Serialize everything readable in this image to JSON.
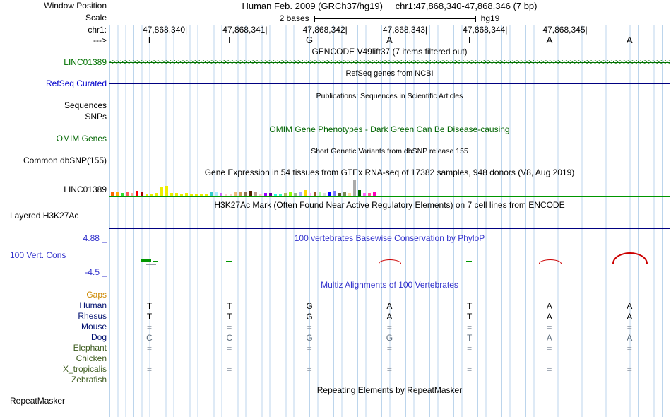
{
  "colors": {
    "guide_line": "#bcd5ec",
    "gencode_green": "#007200",
    "refseq_blue": "#0000CC",
    "navy_line": "#000080",
    "omim_green": "#006400",
    "gtex_baseline_green": "#009600",
    "conservation_blue": "#3333CC",
    "gaps_orange": "#CC8800",
    "phylop_positive_red": "#CC0000",
    "phylop_negative_green": "#009600"
  },
  "window": {
    "label": "Window Position",
    "assembly": "Human Feb. 2009 (GRCh37/hg19)",
    "position": "chr1:47,868,340-47,868,346 (7 bp)"
  },
  "scale": {
    "label": "Scale",
    "value": "2 bases",
    "assembly": "hg19"
  },
  "ruler": {
    "chrom_label": "chr1:",
    "strand_label": "--->",
    "coordinates": [
      "47,868,340|",
      "47,868,341|",
      "47,868,342|",
      "47,868,343|",
      "47,868,344|",
      "47,868,345|"
    ],
    "bases": [
      "T",
      "T",
      "G",
      "A",
      "T",
      "A",
      "A"
    ]
  },
  "tracks": {
    "gencode": {
      "title": "GENCODE V49lift37 (7 items filtered out)",
      "gene": "LINC01389",
      "strand_char": "<"
    },
    "refseq": {
      "title": "RefSeq genes from NCBI",
      "label": "RefSeq Curated"
    },
    "publications": {
      "title": "Publications: Sequences in Scientific Articles",
      "label_sequences": "Sequences",
      "label_snps": "SNPs"
    },
    "omim": {
      "title": "OMIM Gene Phenotypes - Dark Green Can Be Disease-causing",
      "label": "OMIM Genes"
    },
    "dbsnp": {
      "title": "Short Genetic Variants from dbSNP release 155",
      "label": "Common dbSNP(155)"
    },
    "gtex": {
      "title": "Gene Expression in 54 tissues from GTEx RNA-seq of 17382 samples, 948 donors (V8, Aug 2019)",
      "label": "LINC01389",
      "bars": [
        {
          "h": 6,
          "c": "#FF6600"
        },
        {
          "h": 5,
          "c": "#FFAA00"
        },
        {
          "h": 4,
          "c": "#33DD33"
        },
        {
          "h": 6,
          "c": "#FF5555"
        },
        {
          "h": 4,
          "c": "#FFAA99"
        },
        {
          "h": 7,
          "c": "#FF0000"
        },
        {
          "h": 5,
          "c": "#AA0000"
        },
        {
          "h": 3,
          "c": "#EEEE00"
        },
        {
          "h": 3,
          "c": "#EEEE00"
        },
        {
          "h": 4,
          "c": "#EEEE00"
        },
        {
          "h": 12,
          "c": "#EEEE00"
        },
        {
          "h": 14,
          "c": "#EEEE00"
        },
        {
          "h": 4,
          "c": "#EEEE00"
        },
        {
          "h": 4,
          "c": "#EEEE00"
        },
        {
          "h": 3,
          "c": "#EEEE00"
        },
        {
          "h": 4,
          "c": "#EEEE00"
        },
        {
          "h": 3,
          "c": "#EEEE00"
        },
        {
          "h": 3,
          "c": "#EEEE00"
        },
        {
          "h": 3,
          "c": "#EEEE00"
        },
        {
          "h": 3,
          "c": "#EEEE00"
        },
        {
          "h": 5,
          "c": "#33CCCC"
        },
        {
          "h": 5,
          "c": "#AAEEFF"
        },
        {
          "h": 4,
          "c": "#CC66FF"
        },
        {
          "h": 3,
          "c": "#FFCCCC"
        },
        {
          "h": 3,
          "c": "#FFCCCC"
        },
        {
          "h": 5,
          "c": "#EEBB77"
        },
        {
          "h": 5,
          "c": "#CC9955"
        },
        {
          "h": 5,
          "c": "#8B7355"
        },
        {
          "h": 7,
          "c": "#552200"
        },
        {
          "h": 5,
          "c": "#BB9988"
        },
        {
          "h": 3,
          "c": "#FFCCCC"
        },
        {
          "h": 4,
          "c": "#9900FF"
        },
        {
          "h": 4,
          "c": "#660099"
        },
        {
          "h": 3,
          "c": "#22FFDD"
        },
        {
          "h": 2,
          "c": "#33FFC2"
        },
        {
          "h": 4,
          "c": "#AABB66"
        },
        {
          "h": 6,
          "c": "#99FF00"
        },
        {
          "h": 4,
          "c": "#99BB88"
        },
        {
          "h": 5,
          "c": "#AAAAFF"
        },
        {
          "h": 8,
          "c": "#FFD700"
        },
        {
          "h": 4,
          "c": "#FFAAFF"
        },
        {
          "h": 5,
          "c": "#995522"
        },
        {
          "h": 6,
          "c": "#AAFF99"
        },
        {
          "h": 4,
          "c": "#DDDDDD"
        },
        {
          "h": 6,
          "c": "#0000FF"
        },
        {
          "h": 7,
          "c": "#7777FF"
        },
        {
          "h": 4,
          "c": "#555522"
        },
        {
          "h": 5,
          "c": "#778855"
        },
        {
          "h": 4,
          "c": "#FFDD99"
        },
        {
          "h": 22,
          "c": "#AAAAAA"
        },
        {
          "h": 8,
          "c": "#006600"
        },
        {
          "h": 4,
          "c": "#FF66FF"
        },
        {
          "h": 4,
          "c": "#FF5599"
        },
        {
          "h": 5,
          "c": "#FF00BB"
        }
      ]
    },
    "h3k27ac": {
      "title": "H3K27Ac Mark (Often Found Near Active Regulatory Elements) on 7 cell lines from ENCODE",
      "label": "Layered H3K27Ac"
    },
    "phylop": {
      "title": "100 vertebrates Basewise Conservation by PhyloP",
      "label": "100 Vert. Cons",
      "max_label": "4.88 _",
      "min_label": "-4.5 _"
    },
    "multiz": {
      "title": "Multiz Alignments of 100 Vertebrates",
      "gaps_label": "Gaps",
      "species": [
        {
          "name": "Human",
          "color": "#001070",
          "cells": [
            "T",
            "T",
            "G",
            "A",
            "T",
            "A",
            "A"
          ],
          "cell_color": "#000000"
        },
        {
          "name": "Rhesus",
          "color": "#001070",
          "cells": [
            "T",
            "T",
            "G",
            "A",
            "T",
            "A",
            "A"
          ],
          "cell_color": "#000000"
        },
        {
          "name": "Mouse",
          "color": "#001070",
          "cells": [
            "=",
            "=",
            "=",
            "=",
            "=",
            "=",
            "="
          ],
          "cell_color": "#98A2AE"
        },
        {
          "name": "Dog",
          "color": "#001070",
          "cells": [
            "C",
            "C",
            "G",
            "G",
            "T",
            "A",
            "A"
          ],
          "cell_color": "#5E6E7E"
        },
        {
          "name": "Elephant",
          "color": "#3E5C1F",
          "cells": [
            "=",
            "=",
            "=",
            "=",
            "=",
            "=",
            "="
          ],
          "cell_color": "#98A2AE"
        },
        {
          "name": "Chicken",
          "color": "#3E5C1F",
          "cells": [
            "=",
            "=",
            "=",
            "=",
            "=",
            "=",
            "="
          ],
          "cell_color": "#98A2AE"
        },
        {
          "name": "X_tropicalis",
          "color": "#3E5C1F",
          "cells": [
            "=",
            "=",
            "=",
            "=",
            "=",
            "=",
            "="
          ],
          "cell_color": "#98A2AE"
        },
        {
          "name": "Zebrafish",
          "color": "#3E5C1F",
          "cells": [
            "",
            "",
            "",
            "",
            "",
            "",
            ""
          ],
          "cell_color": "#98A2AE"
        }
      ]
    },
    "repeatmasker": {
      "title": "Repeating Elements by RepeatMasker",
      "label": "RepeatMasker"
    }
  }
}
